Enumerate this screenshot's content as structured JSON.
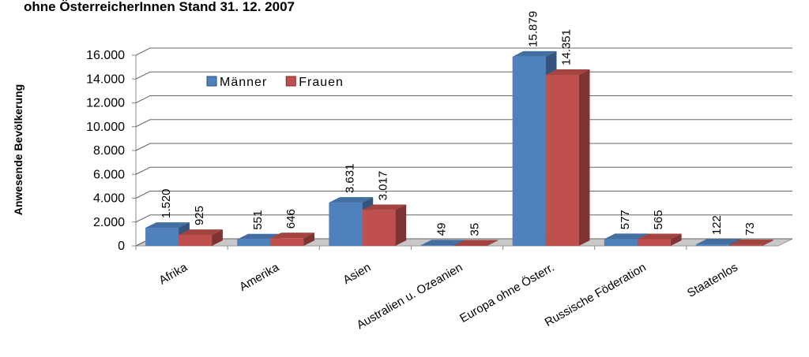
{
  "chart_data": {
    "type": "bar",
    "title": "ohne ÖsterreicherInnen Stand 31. 12. 2007",
    "y_label": "Anwesende Bevölkerung",
    "categories": [
      "Afrika",
      "Amerika",
      "Asien",
      "Australien u. Ozeanien",
      "Europa ohne Österr.",
      "Russische Föderation",
      "Staatenlos"
    ],
    "series": [
      {
        "name": "Männer",
        "color": "#4f81bd",
        "values": [
          1520,
          551,
          3631,
          49,
          15879,
          577,
          122
        ],
        "value_labels": [
          "1.520",
          "551",
          "3.631",
          "49",
          "15.879",
          "577",
          "122"
        ]
      },
      {
        "name": "Frauen",
        "color": "#c0504d",
        "values": [
          925,
          646,
          3017,
          35,
          14351,
          565,
          73
        ],
        "value_labels": [
          "925",
          "646",
          "3.017",
          "35",
          "14.351",
          "565",
          "73"
        ]
      }
    ],
    "ylim": [
      0,
      16000
    ],
    "yticks": [
      0,
      {
        "value": 2000,
        "label": "2.000"
      },
      {
        "value": 4000,
        "label": "4.000"
      },
      {
        "value": 6000,
        "label": "6.000"
      },
      {
        "value": 8000,
        "label": "8.000"
      },
      {
        "value": 10000,
        "label": "10.000"
      },
      {
        "value": 12000,
        "label": "12.000"
      },
      {
        "value": 14000,
        "label": "14.000"
      },
      {
        "value": 16000,
        "label": "16.000"
      }
    ],
    "grid": true,
    "legend": "top-left"
  }
}
